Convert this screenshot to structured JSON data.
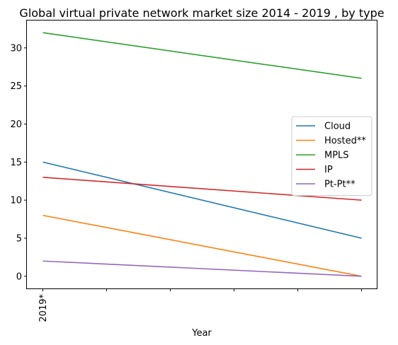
{
  "chart_data": {
    "type": "line",
    "title": "Global virtual private network market size 2014 - 2019 , by type",
    "xlabel": "Year",
    "ylabel": "",
    "x_tick_labels": [
      "2019*",
      "",
      "",
      "",
      "",
      ""
    ],
    "x": [
      0,
      1,
      2,
      3,
      4,
      5
    ],
    "ylim": [
      -1.6,
      33.6
    ],
    "y_ticks": [
      0,
      5,
      10,
      15,
      20,
      25,
      30
    ],
    "grid": false,
    "legend_position": "center-right",
    "series": [
      {
        "name": "Cloud",
        "color": "#1f77b4",
        "points": [
          [
            0,
            15
          ],
          [
            5,
            5
          ]
        ]
      },
      {
        "name": "Hosted**",
        "color": "#ff7f0e",
        "points": [
          [
            0,
            8
          ],
          [
            5,
            0
          ]
        ]
      },
      {
        "name": "MPLS",
        "color": "#2ca02c",
        "points": [
          [
            0,
            32
          ],
          [
            5,
            26
          ]
        ]
      },
      {
        "name": "IP",
        "color": "#d62728",
        "points": [
          [
            0,
            13
          ],
          [
            5,
            10
          ]
        ]
      },
      {
        "name": "Pt-Pt**",
        "color": "#9467bd",
        "points": [
          [
            0,
            2
          ],
          [
            5,
            0
          ]
        ]
      }
    ]
  }
}
